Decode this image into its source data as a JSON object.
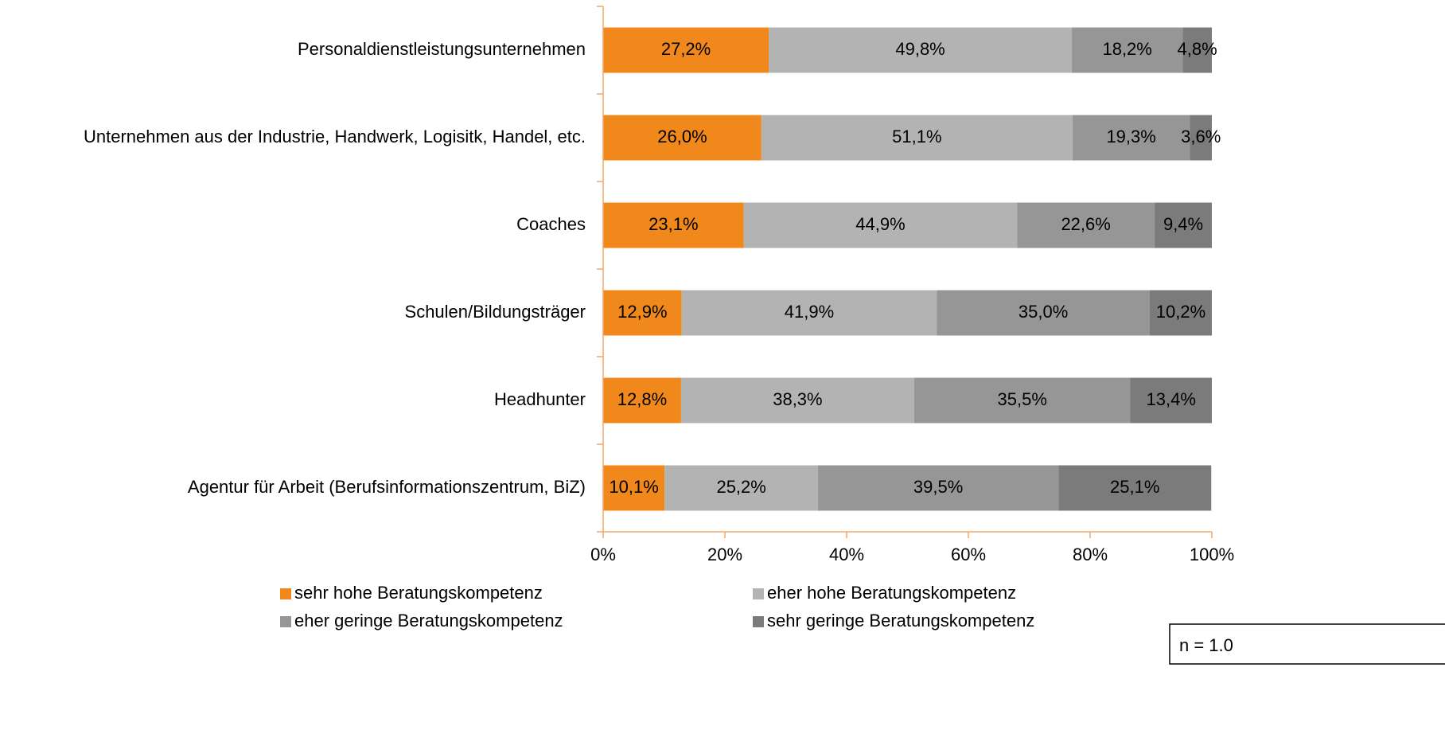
{
  "chart_data": {
    "type": "stacked-barh",
    "categories": [
      "Personaldienstleistungsunternehmen",
      "Unternehmen aus der Industrie, Handwerk, Logisitk, Handel, etc.",
      "Coaches",
      "Schulen/Bildungsträger",
      "Headhunter",
      "Agentur für Arbeit (Berufsinformationszentrum, BiZ)"
    ],
    "series": [
      {
        "name": "sehr hohe Beratungskompetenz",
        "color": "#f0881c",
        "values": [
          27.2,
          26.0,
          23.1,
          12.9,
          12.8,
          10.1
        ],
        "value_labels": [
          "27,2%",
          "26,0%",
          "23,1%",
          "12,9%",
          "12,8%",
          "10,1%"
        ]
      },
      {
        "name": "eher hohe Beratungskompetenz",
        "color": "#b3b3b3",
        "values": [
          49.8,
          51.1,
          44.9,
          41.9,
          38.3,
          25.2
        ],
        "value_labels": [
          "49,8%",
          "51,1%",
          "44,9%",
          "41,9%",
          "38,3%",
          "25,2%"
        ]
      },
      {
        "name": "eher geringe Beratungskompetenz",
        "color": "#969696",
        "values": [
          18.2,
          19.3,
          22.6,
          35.0,
          35.5,
          39.5
        ],
        "value_labels": [
          "18,2%",
          "19,3%",
          "22,6%",
          "35,0%",
          "35,5%",
          "39,5%"
        ]
      },
      {
        "name": "sehr geringe Beratungskompetenz",
        "color": "#7b7b7b",
        "values": [
          4.8,
          3.6,
          9.4,
          10.2,
          13.4,
          25.1
        ],
        "value_labels": [
          "4,8%",
          "3,6%",
          "9,4%",
          "10,2%",
          "13,4%",
          "25,1%"
        ]
      }
    ],
    "xlim": [
      0,
      100
    ],
    "xticks": [
      {
        "value": 0,
        "label": "0%"
      },
      {
        "value": 20,
        "label": "20%"
      },
      {
        "value": 40,
        "label": "40%"
      },
      {
        "value": 60,
        "label": "60%"
      },
      {
        "value": 80,
        "label": "80%"
      },
      {
        "value": 100,
        "label": "100%"
      }
    ],
    "annotation": "n = 1.0"
  }
}
